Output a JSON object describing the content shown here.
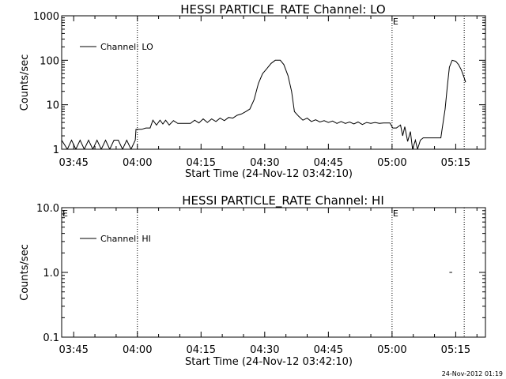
{
  "footer": {
    "timestamp": "24-Nov-2012 01:19"
  },
  "chart_data": [
    {
      "type": "line",
      "title": "HESSI PARTICLE_RATE Channel: LO",
      "xlabel": "Start Time (24-Nov-12 03:42:10)",
      "ylabel": "Counts/sec",
      "y_scale": "log",
      "ylim": [
        1,
        1000
      ],
      "x_range": [
        "03:42:10",
        "05:22:00"
      ],
      "x_tick_labels": [
        "03:45",
        "04:00",
        "04:15",
        "04:30",
        "04:45",
        "05:00",
        "05:15"
      ],
      "y_tick_labels": [
        "1",
        "10",
        "100",
        "1000"
      ],
      "legend": {
        "label": "Channel: LO",
        "position": "top-left"
      },
      "annotations": [
        {
          "text": "E",
          "x": "05:00"
        }
      ],
      "vlines": [
        "04:00",
        "05:00",
        "05:17"
      ],
      "series": [
        {
          "name": "Channel: LO",
          "points": [
            [
              "03:42:10",
              1.6
            ],
            [
              "03:43:30",
              1
            ],
            [
              "03:44:30",
              1.6
            ],
            [
              "03:45:30",
              1
            ],
            [
              "03:46:30",
              1.6
            ],
            [
              "03:47:30",
              1
            ],
            [
              "03:48:30",
              1.6
            ],
            [
              "03:49:30",
              1
            ],
            [
              "03:50:30",
              1.6
            ],
            [
              "03:51:30",
              1
            ],
            [
              "03:52:30",
              1.6
            ],
            [
              "03:53:30",
              1
            ],
            [
              "03:54:30",
              1.6
            ],
            [
              "03:55:30",
              1.6
            ],
            [
              "03:56:30",
              1
            ],
            [
              "03:57:30",
              1.6
            ],
            [
              "03:58:30",
              1
            ],
            [
              "03:59:30",
              1.6
            ],
            [
              "03:59:40",
              2.8
            ],
            [
              "04:01:00",
              2.8
            ],
            [
              "04:02:00",
              3
            ],
            [
              "04:03:00",
              3
            ],
            [
              "04:03:40",
              4.5
            ],
            [
              "04:04:30",
              3.5
            ],
            [
              "04:05:20",
              4.5
            ],
            [
              "04:06:00",
              3.7
            ],
            [
              "04:06:40",
              4.5
            ],
            [
              "04:07:30",
              3.5
            ],
            [
              "04:08:30",
              4.4
            ],
            [
              "04:09:30",
              3.8
            ],
            [
              "04:11:00",
              3.8
            ],
            [
              "04:12:30",
              3.8
            ],
            [
              "04:13:30",
              4.5
            ],
            [
              "04:14:30",
              3.9
            ],
            [
              "04:15:30",
              4.8
            ],
            [
              "04:16:30",
              4
            ],
            [
              "04:17:30",
              4.8
            ],
            [
              "04:18:30",
              4.2
            ],
            [
              "04:19:30",
              5
            ],
            [
              "04:20:30",
              4.4
            ],
            [
              "04:21:30",
              5.2
            ],
            [
              "04:22:30",
              5
            ],
            [
              "04:23:30",
              5.8
            ],
            [
              "04:24:30",
              6.2
            ],
            [
              "04:25:30",
              7
            ],
            [
              "04:26:30",
              8
            ],
            [
              "04:27:30",
              13
            ],
            [
              "04:28:30",
              30
            ],
            [
              "04:29:30",
              50
            ],
            [
              "04:30:30",
              65
            ],
            [
              "04:31:30",
              85
            ],
            [
              "04:32:30",
              100
            ],
            [
              "04:33:40",
              100
            ],
            [
              "04:34:30",
              80
            ],
            [
              "04:35:30",
              45
            ],
            [
              "04:36:20",
              20
            ],
            [
              "04:37:00",
              7
            ],
            [
              "04:38:00",
              5.5
            ],
            [
              "04:39:00",
              4.5
            ],
            [
              "04:40:00",
              5
            ],
            [
              "04:41:00",
              4.2
            ],
            [
              "04:42:00",
              4.6
            ],
            [
              "04:43:00",
              4.1
            ],
            [
              "04:44:00",
              4.4
            ],
            [
              "04:45:00",
              4
            ],
            [
              "04:46:00",
              4.3
            ],
            [
              "04:47:00",
              3.8
            ],
            [
              "04:48:00",
              4.2
            ],
            [
              "04:49:00",
              3.8
            ],
            [
              "04:50:00",
              4.1
            ],
            [
              "04:51:00",
              3.7
            ],
            [
              "04:52:00",
              4.1
            ],
            [
              "04:53:00",
              3.6
            ],
            [
              "04:54:00",
              4
            ],
            [
              "04:55:00",
              3.8
            ],
            [
              "04:56:00",
              4
            ],
            [
              "04:57:00",
              3.8
            ],
            [
              "04:58:00",
              3.9
            ],
            [
              "04:59:30",
              3.9
            ],
            [
              "05:00:10",
              3
            ],
            [
              "05:01:00",
              3
            ],
            [
              "05:02:00",
              3.5
            ],
            [
              "05:02:30",
              2
            ],
            [
              "05:03:00",
              3.2
            ],
            [
              "05:03:40",
              1.5
            ],
            [
              "05:04:20",
              2.5
            ],
            [
              "05:04:50",
              1
            ],
            [
              "05:05:30",
              1.6
            ],
            [
              "05:06:00",
              1
            ],
            [
              "05:06:40",
              1.6
            ],
            [
              "05:07:20",
              1.8
            ],
            [
              "05:08:00",
              1.8
            ],
            [
              "05:10:00",
              1.8
            ],
            [
              "05:11:30",
              1.8
            ],
            [
              "05:11:50",
              3
            ],
            [
              "05:12:30",
              8
            ],
            [
              "05:13:00",
              25
            ],
            [
              "05:13:30",
              70
            ],
            [
              "05:14:10",
              100
            ],
            [
              "05:15:00",
              95
            ],
            [
              "05:15:40",
              80
            ],
            [
              "05:16:20",
              60
            ],
            [
              "05:17:00",
              40
            ],
            [
              "05:17:20",
              32
            ]
          ]
        }
      ]
    },
    {
      "type": "line",
      "title": "HESSI PARTICLE_RATE Channel: HI",
      "xlabel": "Start Time (24-Nov-12 03:42:10)",
      "ylabel": "Counts/sec",
      "y_scale": "log",
      "ylim": [
        0.1,
        10
      ],
      "x_range": [
        "03:42:10",
        "05:22:00"
      ],
      "x_tick_labels": [
        "03:45",
        "04:00",
        "04:15",
        "04:30",
        "04:45",
        "05:00",
        "05:15"
      ],
      "y_tick_labels": [
        "0.1",
        "1.0",
        "10.0"
      ],
      "legend": {
        "label": "Channel: HI",
        "position": "top-left"
      },
      "annotations": [
        {
          "text": "E",
          "x": "03:42:10"
        },
        {
          "text": "E",
          "x": "05:00"
        }
      ],
      "vlines": [
        "04:00",
        "05:00",
        "05:17"
      ],
      "series": [
        {
          "name": "Channel: HI",
          "points": [
            [
              "05:13:30",
              1.0
            ],
            [
              "05:14:10",
              1.0
            ]
          ]
        }
      ]
    }
  ]
}
